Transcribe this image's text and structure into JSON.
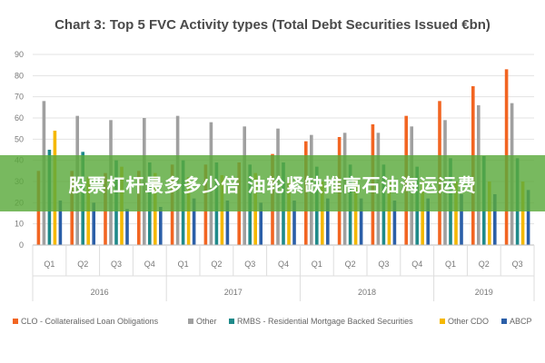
{
  "chart_data": {
    "type": "bar",
    "title": "Chart 3: Top 5 FVC Activity types (Total Debt Securities Issued €bn)",
    "xlabel": "",
    "ylabel": "",
    "ylim": [
      0,
      90
    ],
    "yticks": [
      0,
      10,
      20,
      30,
      40,
      50,
      60,
      70,
      80,
      90
    ],
    "grid": true,
    "legend_position": "bottom",
    "categories": [
      "Q1",
      "Q2",
      "Q3",
      "Q4",
      "Q1",
      "Q2",
      "Q3",
      "Q4",
      "Q1",
      "Q2",
      "Q3",
      "Q4",
      "Q1",
      "Q2",
      "Q3"
    ],
    "years": [
      {
        "label": "2016",
        "count": 4
      },
      {
        "label": "2017",
        "count": 4
      },
      {
        "label": "2018",
        "count": 4
      },
      {
        "label": "2019",
        "count": 3
      }
    ],
    "series": [
      {
        "name": "CLO - Collateralised Loan Obligations",
        "color": "#f26522",
        "values": [
          35,
          35,
          34,
          35,
          38,
          38,
          39,
          43,
          49,
          51,
          57,
          61,
          68,
          75,
          83
        ]
      },
      {
        "name": "Other",
        "color": "#a0a0a0",
        "values": [
          68,
          61,
          59,
          60,
          61,
          58,
          56,
          55,
          52,
          53,
          53,
          56,
          59,
          66,
          67
        ]
      },
      {
        "name": "RMBS - Residential Mortgage Backed Securities",
        "color": "#1f8a8a",
        "values": [
          45,
          44,
          40,
          39,
          40,
          39,
          38,
          39,
          37,
          38,
          38,
          37,
          41,
          42,
          41
        ]
      },
      {
        "name": "Other CDO",
        "color": "#f5b800",
        "values": [
          54,
          32,
          37,
          34,
          32,
          33,
          34,
          31,
          30,
          31,
          31,
          30,
          30,
          30,
          30
        ]
      },
      {
        "name": "ABCP",
        "color": "#2b5fa8",
        "values": [
          21,
          20,
          17,
          18,
          22,
          21,
          20,
          21,
          22,
          22,
          21,
          22,
          24,
          24,
          26
        ]
      }
    ]
  },
  "banner": {
    "text": "股票杠杆最多多少倍 油轮紧缺推高石油海运运费"
  }
}
